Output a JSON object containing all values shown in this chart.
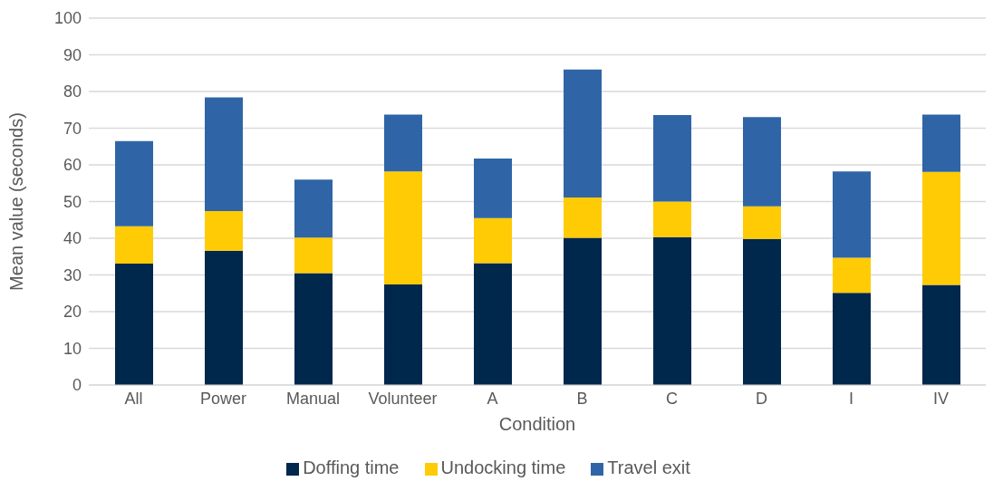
{
  "chart_data": {
    "type": "bar",
    "stacked": true,
    "xlabel": "Condition",
    "ylabel": "Mean value (seconds)",
    "categories": [
      "All",
      "Power",
      "Manual",
      "Volunteer",
      "A",
      "B",
      "C",
      "D",
      "I",
      "IV"
    ],
    "series": [
      {
        "name": "Doffing time",
        "color": "#00274c",
        "values": [
          33.1,
          36.6,
          30.5,
          27.4,
          33.2,
          40.1,
          40.3,
          39.8,
          25.1,
          27.3
        ]
      },
      {
        "name": "Undocking time",
        "color": "#ffcb05",
        "values": [
          10.2,
          10.8,
          9.7,
          30.8,
          12.3,
          11.0,
          9.7,
          8.9,
          9.6,
          30.8
        ]
      },
      {
        "name": "Travel exit",
        "color": "#2f65a7",
        "values": [
          23.2,
          31.0,
          15.8,
          15.5,
          16.2,
          34.9,
          23.6,
          24.3,
          23.5,
          15.6
        ]
      }
    ],
    "ylim": [
      0,
      100
    ],
    "yticks": [
      0,
      10,
      20,
      30,
      40,
      50,
      60,
      70,
      80,
      90,
      100
    ],
    "grid": "y",
    "legend": "bottom"
  }
}
